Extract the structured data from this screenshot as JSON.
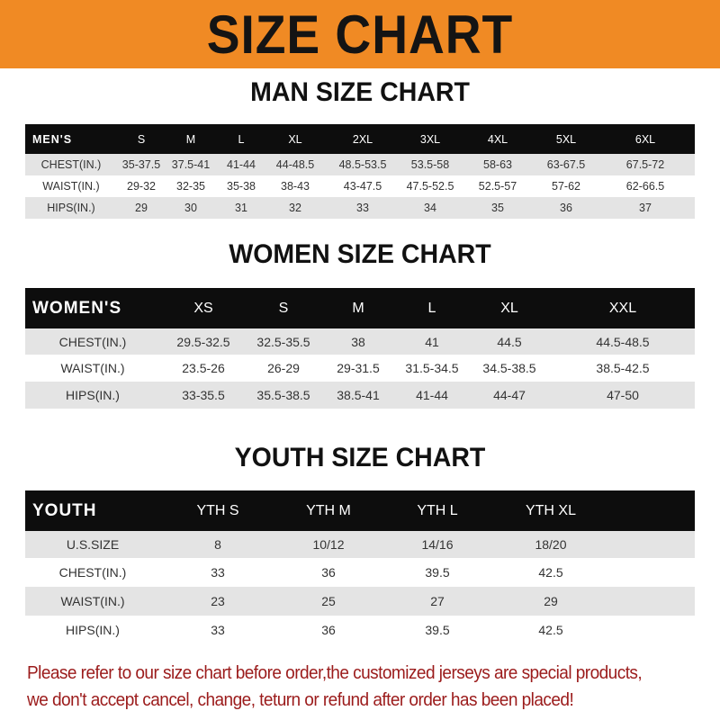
{
  "title": "SIZE CHART",
  "men": {
    "heading": "MAN SIZE CHART",
    "header": [
      "MEN'S",
      "S",
      "M",
      "L",
      "XL",
      "2XL",
      "3XL",
      "4XL",
      "5XL",
      "6XL"
    ],
    "rows": [
      [
        "CHEST(IN.)",
        "35-37.5",
        "37.5-41",
        "41-44",
        "44-48.5",
        "48.5-53.5",
        "53.5-58",
        "58-63",
        "63-67.5",
        "67.5-72"
      ],
      [
        "WAIST(IN.)",
        "29-32",
        "32-35",
        "35-38",
        "38-43",
        "43-47.5",
        "47.5-52.5",
        "52.5-57",
        "57-62",
        "62-66.5"
      ],
      [
        "HIPS(IN.)",
        "29",
        "30",
        "31",
        "32",
        "33",
        "34",
        "35",
        "36",
        "37"
      ]
    ]
  },
  "women": {
    "heading": "WOMEN SIZE CHART",
    "header": [
      "WOMEN'S",
      "XS",
      "S",
      "M",
      "L",
      "XL",
      "XXL"
    ],
    "rows": [
      [
        "CHEST(IN.)",
        "29.5-32.5",
        "32.5-35.5",
        "38",
        "41",
        "44.5",
        "44.5-48.5"
      ],
      [
        "WAIST(IN.)",
        "23.5-26",
        "26-29",
        "29-31.5",
        "31.5-34.5",
        "34.5-38.5",
        "38.5-42.5"
      ],
      [
        "HIPS(IN.)",
        "33-35.5",
        "35.5-38.5",
        "38.5-41",
        "41-44",
        "44-47",
        "47-50"
      ]
    ]
  },
  "youth": {
    "heading": "YOUTH SIZE CHART",
    "header": [
      "YOUTH",
      "YTH S",
      "YTH M",
      "YTH L",
      "YTH XL"
    ],
    "rows": [
      [
        "U.S.SIZE",
        "8",
        "10/12",
        "14/16",
        "18/20"
      ],
      [
        "CHEST(IN.)",
        "33",
        "36",
        "39.5",
        "42.5"
      ],
      [
        "WAIST(IN.)",
        "23",
        "25",
        "27",
        "29"
      ],
      [
        "HIPS(IN.)",
        "33",
        "36",
        "39.5",
        "42.5"
      ]
    ]
  },
  "note": [
    "Please refer to our size chart before order,the customized jerseys are special products,",
    "we don't accept cancel, change, teturn or refund after order has been placed!"
  ],
  "colors": {
    "banner": "#f08a24",
    "header_row": "#0d0d0d",
    "stripe": "#e4e4e4",
    "note": "#9b1b1b"
  }
}
